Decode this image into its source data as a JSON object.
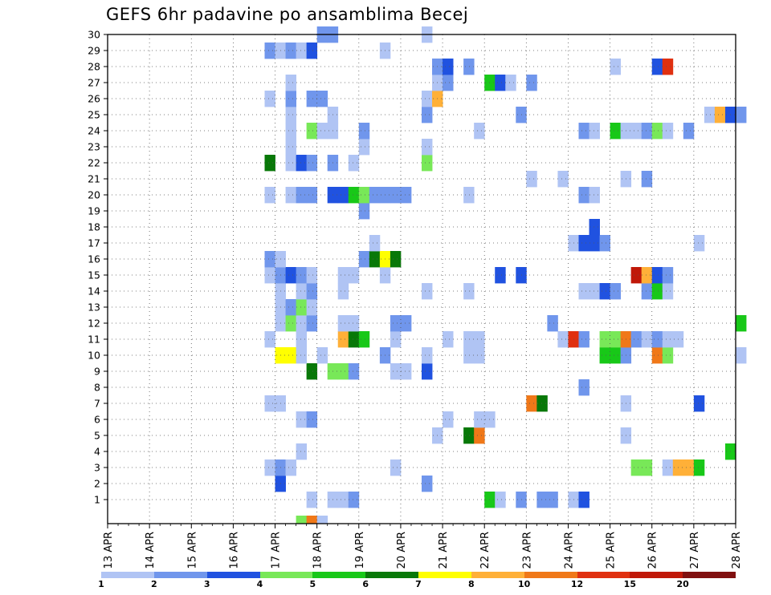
{
  "title": "GEFS 6hr padavine po ansamblima Becej",
  "chart_data": {
    "type": "heatmap",
    "title": "GEFS 6hr padavine po ansamblima Becej",
    "xlabel": "",
    "ylabel": "",
    "x_ticks": [
      "13 APR",
      "14 APR",
      "15 APR",
      "16 APR",
      "17 APR",
      "18 APR",
      "19 APR",
      "20 APR",
      "21 APR",
      "22 APR",
      "23 APR",
      "24 APR",
      "25 APR",
      "26 APR",
      "27 APR",
      "28 APR"
    ],
    "y_ticks": [
      1,
      2,
      3,
      4,
      5,
      6,
      7,
      8,
      9,
      10,
      11,
      12,
      13,
      14,
      15,
      16,
      17,
      18,
      19,
      20,
      21,
      22,
      23,
      24,
      25,
      26,
      27,
      28,
      29,
      30
    ],
    "ylim": [
      0,
      30
    ],
    "steps_per_day": 4,
    "grid": true,
    "color_levels": [
      "1",
      "2",
      "3",
      "4",
      "5",
      "6",
      "7",
      "8",
      "10",
      "12",
      "15",
      "20"
    ],
    "colors": [
      "#b0c4f4",
      "#7096ec",
      "#2052e0",
      "#78e858",
      "#18c818",
      "#087808",
      "#ffff00",
      "#ffb038",
      "#f07818",
      "#e03010",
      "#c01808",
      "#801010"
    ],
    "cells": [
      [
        1,
        19,
        1
      ],
      [
        1,
        21,
        1
      ],
      [
        1,
        22,
        1
      ],
      [
        1,
        23,
        2
      ],
      [
        1,
        36,
        5
      ],
      [
        1,
        37,
        1
      ],
      [
        1,
        39,
        2
      ],
      [
        1,
        41,
        2
      ],
      [
        1,
        42,
        2
      ],
      [
        1,
        44,
        1
      ],
      [
        1,
        45,
        3
      ],
      [
        2,
        16,
        3
      ],
      [
        2,
        30,
        2
      ],
      [
        3,
        15,
        1
      ],
      [
        3,
        16,
        2
      ],
      [
        3,
        17,
        1
      ],
      [
        3,
        27,
        1
      ],
      [
        3,
        50,
        4
      ],
      [
        3,
        51,
        4
      ],
      [
        3,
        53,
        1
      ],
      [
        3,
        54,
        8
      ],
      [
        3,
        55,
        8
      ],
      [
        3,
        56,
        5
      ],
      [
        4,
        18,
        1
      ],
      [
        4,
        59,
        5
      ],
      [
        5,
        31,
        1
      ],
      [
        5,
        34,
        6
      ],
      [
        5,
        35,
        9
      ],
      [
        5,
        49,
        1
      ],
      [
        6,
        18,
        1
      ],
      [
        6,
        19,
        2
      ],
      [
        6,
        32,
        1
      ],
      [
        6,
        35,
        1
      ],
      [
        6,
        36,
        1
      ],
      [
        7,
        15,
        1
      ],
      [
        7,
        16,
        1
      ],
      [
        7,
        40,
        9
      ],
      [
        7,
        41,
        6
      ],
      [
        7,
        49,
        1
      ],
      [
        7,
        56,
        3
      ],
      [
        8,
        45,
        2
      ],
      [
        9,
        19,
        6
      ],
      [
        9,
        21,
        4
      ],
      [
        9,
        22,
        4
      ],
      [
        9,
        23,
        2
      ],
      [
        9,
        27,
        1
      ],
      [
        9,
        28,
        1
      ],
      [
        9,
        30,
        3
      ],
      [
        10,
        16,
        7
      ],
      [
        10,
        17,
        7
      ],
      [
        10,
        18,
        1
      ],
      [
        10,
        20,
        1
      ],
      [
        10,
        26,
        2
      ],
      [
        10,
        30,
        1
      ],
      [
        10,
        34,
        1
      ],
      [
        10,
        35,
        1
      ],
      [
        10,
        47,
        5
      ],
      [
        10,
        48,
        5
      ],
      [
        10,
        49,
        2
      ],
      [
        10,
        52,
        9
      ],
      [
        10,
        53,
        4
      ],
      [
        10,
        60,
        1
      ],
      [
        11,
        15,
        1
      ],
      [
        11,
        18,
        1
      ],
      [
        11,
        22,
        8
      ],
      [
        11,
        23,
        6
      ],
      [
        11,
        24,
        5
      ],
      [
        11,
        27,
        1
      ],
      [
        11,
        32,
        1
      ],
      [
        11,
        34,
        1
      ],
      [
        11,
        35,
        1
      ],
      [
        11,
        43,
        1
      ],
      [
        11,
        44,
        10
      ],
      [
        11,
        45,
        2
      ],
      [
        11,
        47,
        4
      ],
      [
        11,
        48,
        4
      ],
      [
        11,
        49,
        9
      ],
      [
        11,
        50,
        2
      ],
      [
        11,
        51,
        1
      ],
      [
        11,
        52,
        2
      ],
      [
        11,
        53,
        1
      ],
      [
        11,
        54,
        1
      ],
      [
        12,
        16,
        1
      ],
      [
        12,
        17,
        4
      ],
      [
        12,
        18,
        1
      ],
      [
        12,
        19,
        2
      ],
      [
        12,
        22,
        1
      ],
      [
        12,
        23,
        1
      ],
      [
        12,
        27,
        2
      ],
      [
        12,
        28,
        2
      ],
      [
        12,
        42,
        2
      ],
      [
        12,
        60,
        5
      ],
      [
        13,
        16,
        1
      ],
      [
        13,
        17,
        2
      ],
      [
        13,
        18,
        4
      ],
      [
        13,
        19,
        1
      ],
      [
        14,
        16,
        1
      ],
      [
        14,
        18,
        1
      ],
      [
        14,
        19,
        2
      ],
      [
        14,
        22,
        1
      ],
      [
        14,
        30,
        1
      ],
      [
        14,
        34,
        1
      ],
      [
        14,
        45,
        1
      ],
      [
        14,
        46,
        1
      ],
      [
        14,
        47,
        3
      ],
      [
        14,
        48,
        2
      ],
      [
        14,
        51,
        2
      ],
      [
        14,
        52,
        5
      ],
      [
        14,
        53,
        1
      ],
      [
        15,
        15,
        1
      ],
      [
        15,
        16,
        2
      ],
      [
        15,
        17,
        3
      ],
      [
        15,
        18,
        2
      ],
      [
        15,
        19,
        1
      ],
      [
        15,
        22,
        1
      ],
      [
        15,
        23,
        1
      ],
      [
        15,
        26,
        1
      ],
      [
        15,
        37,
        3
      ],
      [
        15,
        39,
        3
      ],
      [
        15,
        50,
        11
      ],
      [
        15,
        51,
        8
      ],
      [
        15,
        52,
        3
      ],
      [
        15,
        53,
        2
      ],
      [
        16,
        15,
        2
      ],
      [
        16,
        16,
        1
      ],
      [
        16,
        24,
        2
      ],
      [
        16,
        25,
        6
      ],
      [
        16,
        26,
        7
      ],
      [
        16,
        27,
        6
      ],
      [
        17,
        25,
        1
      ],
      [
        17,
        44,
        1
      ],
      [
        17,
        45,
        3
      ],
      [
        17,
        46,
        3
      ],
      [
        17,
        47,
        2
      ],
      [
        17,
        56,
        1
      ],
      [
        18,
        46,
        3
      ],
      [
        19,
        24,
        2
      ],
      [
        20,
        15,
        1
      ],
      [
        20,
        17,
        1
      ],
      [
        20,
        18,
        2
      ],
      [
        20,
        19,
        2
      ],
      [
        20,
        21,
        3
      ],
      [
        20,
        22,
        3
      ],
      [
        20,
        23,
        5
      ],
      [
        20,
        24,
        4
      ],
      [
        20,
        25,
        2
      ],
      [
        20,
        26,
        2
      ],
      [
        20,
        27,
        2
      ],
      [
        20,
        28,
        2
      ],
      [
        20,
        34,
        1
      ],
      [
        20,
        45,
        2
      ],
      [
        20,
        46,
        1
      ],
      [
        21,
        40,
        1
      ],
      [
        21,
        43,
        1
      ],
      [
        21,
        49,
        1
      ],
      [
        21,
        51,
        2
      ],
      [
        22,
        15,
        6
      ],
      [
        22,
        17,
        1
      ],
      [
        22,
        18,
        3
      ],
      [
        22,
        19,
        2
      ],
      [
        22,
        21,
        2
      ],
      [
        22,
        23,
        1
      ],
      [
        22,
        30,
        4
      ],
      [
        23,
        17,
        1
      ],
      [
        23,
        24,
        1
      ],
      [
        23,
        30,
        1
      ],
      [
        24,
        17,
        1
      ],
      [
        24,
        19,
        4
      ],
      [
        24,
        20,
        1
      ],
      [
        24,
        21,
        1
      ],
      [
        24,
        24,
        2
      ],
      [
        24,
        35,
        1
      ],
      [
        24,
        45,
        2
      ],
      [
        24,
        46,
        1
      ],
      [
        24,
        48,
        5
      ],
      [
        24,
        49,
        1
      ],
      [
        24,
        50,
        1
      ],
      [
        24,
        51,
        2
      ],
      [
        24,
        52,
        4
      ],
      [
        24,
        53,
        1
      ],
      [
        24,
        55,
        2
      ],
      [
        25,
        17,
        1
      ],
      [
        25,
        21,
        1
      ],
      [
        25,
        30,
        2
      ],
      [
        25,
        39,
        2
      ],
      [
        25,
        57,
        1
      ],
      [
        25,
        58,
        8
      ],
      [
        25,
        59,
        3
      ],
      [
        25,
        60,
        2
      ],
      [
        26,
        15,
        1
      ],
      [
        26,
        17,
        2
      ],
      [
        26,
        19,
        2
      ],
      [
        26,
        20,
        2
      ],
      [
        26,
        30,
        1
      ],
      [
        26,
        31,
        8
      ],
      [
        27,
        17,
        1
      ],
      [
        27,
        31,
        1
      ],
      [
        27,
        32,
        2
      ],
      [
        27,
        36,
        5
      ],
      [
        27,
        37,
        3
      ],
      [
        27,
        38,
        1
      ],
      [
        27,
        40,
        2
      ],
      [
        28,
        31,
        2
      ],
      [
        28,
        32,
        3
      ],
      [
        28,
        34,
        2
      ],
      [
        28,
        48,
        1
      ],
      [
        28,
        52,
        3
      ],
      [
        28,
        53,
        10
      ],
      [
        29,
        15,
        2
      ],
      [
        29,
        16,
        1
      ],
      [
        29,
        17,
        2
      ],
      [
        29,
        18,
        1
      ],
      [
        29,
        19,
        3
      ],
      [
        29,
        26,
        1
      ],
      [
        30,
        20,
        2
      ],
      [
        30,
        21,
        2
      ],
      [
        30,
        30,
        1
      ],
      [
        0,
        18,
        4
      ],
      [
        0,
        19,
        9
      ],
      [
        0,
        20,
        1
      ]
    ]
  }
}
